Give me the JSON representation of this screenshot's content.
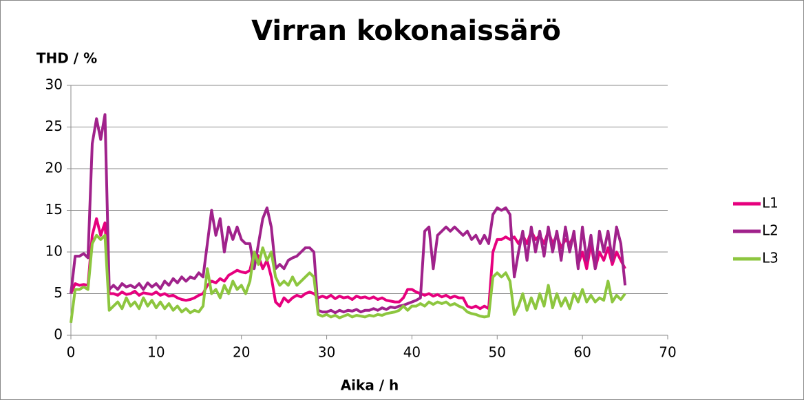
{
  "chart_data": {
    "type": "line",
    "title": "Virran kokonaissärö",
    "y_label": "THD / %",
    "x_label": "Aika / h",
    "x": [
      0,
      0.5,
      1,
      1.5,
      2,
      2.5,
      3,
      3.5,
      4,
      4.5,
      5,
      5.5,
      6,
      6.5,
      7,
      7.5,
      8,
      8.5,
      9,
      9.5,
      10,
      10.5,
      11,
      11.5,
      12,
      12.5,
      13,
      13.5,
      14,
      14.5,
      15,
      15.5,
      16,
      16.5,
      17,
      17.5,
      18,
      18.5,
      19,
      19.5,
      20,
      20.5,
      21,
      21.5,
      22,
      22.5,
      23,
      23.5,
      24,
      24.5,
      25,
      25.5,
      26,
      26.5,
      27,
      27.5,
      28,
      28.5,
      29,
      29.5,
      30,
      30.5,
      31,
      31.5,
      32,
      32.5,
      33,
      33.5,
      34,
      34.5,
      35,
      35.5,
      36,
      36.5,
      37,
      37.5,
      38,
      38.5,
      39,
      39.5,
      40,
      40.5,
      41,
      41.5,
      42,
      42.5,
      43,
      43.5,
      44,
      44.5,
      45,
      45.5,
      46,
      46.5,
      47,
      47.5,
      48,
      48.5,
      49,
      49.5,
      50,
      50.5,
      51,
      51.5,
      52,
      52.5,
      53,
      53.5,
      54,
      54.5,
      55,
      55.5,
      56,
      56.5,
      57,
      57.5,
      58,
      58.5,
      59,
      59.5,
      60,
      60.5,
      61,
      61.5,
      62,
      62.5,
      63,
      63.5,
      64,
      64.5,
      65
    ],
    "series": [
      {
        "name": "L1",
        "color": "#e6007e",
        "values": [
          5,
          6.2,
          6,
          6.1,
          6,
          12,
          14,
          12,
          13.5,
          5,
          5,
          4.8,
          5.2,
          4.9,
          5,
          5.3,
          4.8,
          5.1,
          5,
          4.9,
          5.2,
          4.8,
          5,
          4.7,
          4.8,
          4.5,
          4.3,
          4.2,
          4.3,
          4.5,
          4.8,
          5,
          6,
          6.5,
          6.3,
          6.8,
          6.5,
          7.2,
          7.5,
          7.8,
          7.6,
          7.5,
          7.8,
          10,
          9.5,
          8,
          9,
          7,
          4,
          3.5,
          4.5,
          4,
          4.5,
          4.8,
          4.6,
          5,
          5.2,
          5,
          4.5,
          4.7,
          4.5,
          4.8,
          4.4,
          4.7,
          4.5,
          4.6,
          4.3,
          4.7,
          4.5,
          4.6,
          4.4,
          4.6,
          4.3,
          4.5,
          4.2,
          4.1,
          4,
          4,
          4.5,
          5.5,
          5.5,
          5.2,
          5,
          4.8,
          5,
          4.7,
          4.9,
          4.6,
          4.8,
          4.5,
          4.7,
          4.5,
          4.5,
          3.5,
          3.3,
          3.5,
          3.2,
          3.5,
          3.2,
          10,
          11.5,
          11.5,
          11.8,
          11.5,
          11.8,
          11,
          12,
          11,
          12.5,
          11.5,
          12,
          11,
          12.5,
          11,
          12,
          10.5,
          11.5,
          11,
          12,
          8.5,
          10,
          8,
          11,
          8,
          10,
          9,
          10.5,
          8.5,
          10,
          9,
          8
        ]
      },
      {
        "name": "L2",
        "color": "#a0228b",
        "values": [
          5,
          9.5,
          9.5,
          9.8,
          9.3,
          23,
          26,
          23.5,
          26.5,
          5.5,
          6,
          5.5,
          6.2,
          5.8,
          6,
          5.7,
          6.2,
          5.5,
          6.3,
          5.8,
          6.2,
          5.6,
          6.5,
          6,
          6.8,
          6.3,
          7,
          6.5,
          7,
          6.8,
          7.5,
          7,
          11,
          15,
          12,
          14,
          10,
          13,
          11.5,
          13,
          11.5,
          11,
          11,
          8,
          11,
          14,
          15.3,
          13,
          8,
          8.5,
          8,
          9,
          9.3,
          9.5,
          10,
          10.5,
          10.5,
          10,
          3,
          2.8,
          2.8,
          3,
          2.7,
          3,
          2.8,
          3,
          2.9,
          3.1,
          2.8,
          3,
          3,
          3.2,
          3,
          3.3,
          3.1,
          3.4,
          3.3,
          3.5,
          3.6,
          3.8,
          4,
          4.2,
          4.5,
          12.5,
          13,
          8,
          12,
          12.5,
          13,
          12.5,
          13,
          12.5,
          12,
          12.5,
          11.5,
          12,
          11,
          12,
          11,
          14.5,
          15.3,
          15,
          15.3,
          14.5,
          7,
          10,
          12.5,
          9,
          13,
          10,
          12.5,
          9.5,
          13,
          10,
          12.5,
          9,
          13,
          10,
          12.5,
          8,
          13,
          9,
          12,
          8,
          12.5,
          10,
          12.5,
          9,
          13,
          11,
          6
        ]
      },
      {
        "name": "L3",
        "color": "#8dc63f",
        "values": [
          1.5,
          5.5,
          5.5,
          5.8,
          5.5,
          11,
          12,
          11.5,
          12,
          3,
          3.5,
          4,
          3.2,
          4.5,
          3.5,
          4,
          3.2,
          4.5,
          3.5,
          4.2,
          3.3,
          4,
          3.2,
          3.8,
          3,
          3.5,
          2.8,
          3.2,
          2.7,
          3,
          2.8,
          3.5,
          8,
          5,
          5.5,
          4.5,
          6,
          5,
          6.5,
          5.5,
          6,
          5,
          6.5,
          10,
          8.5,
          10.5,
          9,
          10,
          7,
          6,
          6.5,
          6,
          7,
          6,
          6.5,
          7,
          7.5,
          7,
          2.5,
          2.3,
          2.5,
          2.2,
          2.4,
          2.1,
          2.3,
          2.5,
          2.2,
          2.4,
          2.3,
          2.2,
          2.4,
          2.3,
          2.5,
          2.4,
          2.6,
          2.7,
          2.8,
          3,
          3.5,
          3,
          3.5,
          3.5,
          3.8,
          3.5,
          4,
          3.7,
          4,
          3.8,
          4,
          3.6,
          3.8,
          3.5,
          3.3,
          2.8,
          2.6,
          2.5,
          2.3,
          2.2,
          2.3,
          7,
          7.5,
          7,
          7.5,
          6.5,
          2.5,
          3.5,
          5,
          3,
          4.5,
          3.2,
          5,
          3.5,
          6,
          3.3,
          5,
          3.5,
          4.5,
          3.2,
          5,
          4,
          5.5,
          4,
          4.8,
          4,
          4.5,
          4.2,
          6.5,
          4,
          4.8,
          4.3,
          5
        ]
      }
    ],
    "xlim": [
      0,
      70
    ],
    "xticks": [
      0,
      10,
      20,
      30,
      40,
      50,
      60,
      70
    ],
    "ylim": [
      0,
      30
    ],
    "yticks": [
      0,
      5,
      10,
      15,
      20,
      25,
      30
    ],
    "grid": true,
    "legend": "right"
  }
}
